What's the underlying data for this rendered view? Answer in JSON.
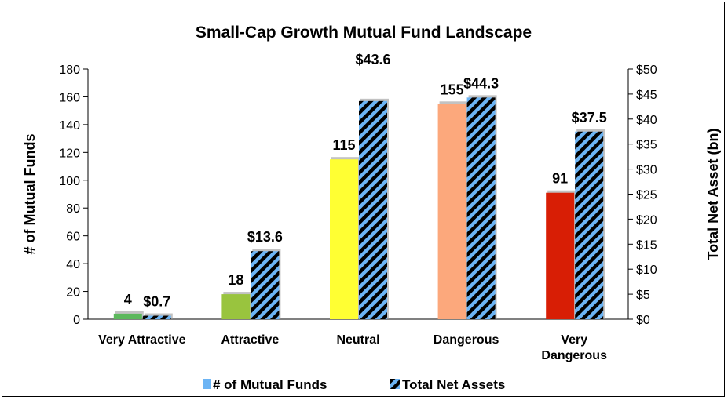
{
  "chart_data": {
    "type": "bar",
    "title": "Small-Cap Growth Mutual Fund Landscape",
    "categories": [
      [
        "Very Attractive"
      ],
      [
        "Attractive"
      ],
      [
        "Neutral"
      ],
      [
        "Dangerous"
      ],
      [
        "Very",
        "Dangerous"
      ]
    ],
    "ylabel_left": "# of Mutual Funds",
    "ylabel_right": "Total Net Asset (bn)",
    "ylim_left": [
      0,
      180
    ],
    "ylim_right": [
      0,
      50
    ],
    "yticks_left": [
      "0",
      "20",
      "40",
      "60",
      "80",
      "100",
      "120",
      "140",
      "160",
      "180"
    ],
    "yticks_right": [
      "$0",
      "$5",
      "$10",
      "$15",
      "$20",
      "$25",
      "$30",
      "$35",
      "$40",
      "$45",
      "$50"
    ],
    "series": [
      {
        "name": "# of Mutual Funds",
        "axis": "left",
        "values": [
          4,
          18,
          115,
          155,
          91
        ],
        "labels": [
          "4",
          "18",
          "115",
          "155",
          "91"
        ],
        "colors": [
          "#5cb85c",
          "#99c43e",
          "#ffff33",
          "#fca87c",
          "#d81e05"
        ],
        "legend_color": "#6cb4f4"
      },
      {
        "name": "Total Net Assets",
        "axis": "right",
        "values": [
          0.7,
          13.6,
          43.6,
          44.3,
          37.5
        ],
        "labels": [
          "$0.7",
          "$13.6",
          "$43.6",
          "$44.3",
          "$37.5"
        ],
        "pattern": "diagonal-stripes",
        "colors": [
          "#6cb4f4",
          "#000000"
        ]
      }
    ],
    "legend": "bottom",
    "grid": false
  }
}
